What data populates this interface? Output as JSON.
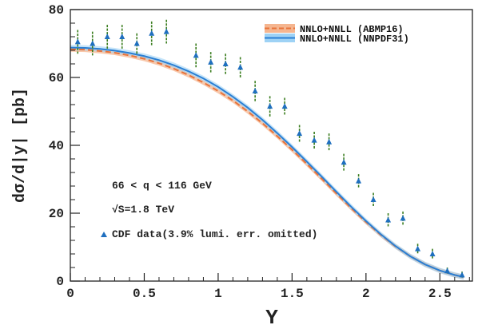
{
  "chart_data": {
    "type": "line",
    "xlabel": "Y",
    "ylabel": "dσ/d|y| [pb]",
    "xlim": [
      0,
      2.72
    ],
    "ylim": [
      0,
      80
    ],
    "xticks": [
      0,
      0.5,
      1,
      1.5,
      2,
      2.5
    ],
    "xtick_labels": [
      "0",
      "0.5",
      "1",
      "1.5",
      "2",
      "2.5"
    ],
    "yticks": [
      0,
      20,
      40,
      60,
      80
    ],
    "ytick_labels": [
      "0",
      "20",
      "40",
      "60",
      "80"
    ],
    "grid": false,
    "legend_position": "top-right",
    "series": [
      {
        "name": "NNLO+NNLL (ABMP16)",
        "kind": "band",
        "color": "#e8733a",
        "band_color": "#f5b58f",
        "style": "dashed",
        "x": [
          0,
          0.1,
          0.2,
          0.3,
          0.4,
          0.5,
          0.6,
          0.7,
          0.8,
          0.9,
          1.0,
          1.1,
          1.2,
          1.3,
          1.4,
          1.5,
          1.6,
          1.7,
          1.8,
          1.9,
          2.0,
          2.1,
          2.2,
          2.3,
          2.4,
          2.5,
          2.6,
          2.66
        ],
        "y": [
          68.3,
          68.2,
          67.8,
          67.3,
          66.5,
          65.5,
          64.2,
          62.6,
          60.7,
          58.5,
          56.0,
          53.2,
          50.0,
          46.5,
          42.7,
          38.7,
          34.5,
          30.2,
          25.8,
          21.5,
          17.4,
          13.6,
          10.2,
          7.3,
          4.9,
          3.1,
          1.8,
          1.2
        ],
        "band_halfwidth": 0.7
      },
      {
        "name": "NNLO+NNLL (NNPDF31)",
        "kind": "band",
        "color": "#2a7fd4",
        "band_color": "#9ed2f5",
        "style": "solid",
        "x": [
          0,
          0.1,
          0.2,
          0.3,
          0.4,
          0.5,
          0.6,
          0.7,
          0.8,
          0.9,
          1.0,
          1.1,
          1.2,
          1.3,
          1.4,
          1.5,
          1.6,
          1.7,
          1.8,
          1.9,
          2.0,
          2.1,
          2.2,
          2.3,
          2.4,
          2.5,
          2.6,
          2.66
        ],
        "y": [
          68.8,
          68.7,
          68.4,
          67.9,
          67.2,
          66.3,
          65.1,
          63.6,
          61.8,
          59.7,
          57.2,
          54.3,
          51.1,
          47.5,
          43.6,
          39.5,
          35.2,
          30.8,
          26.3,
          21.9,
          17.7,
          13.8,
          10.3,
          7.3,
          4.9,
          3.1,
          1.8,
          1.2
        ],
        "band_halfwidth": 0.8
      },
      {
        "name": "CDF data(3.9% lumi. err. omitted)",
        "kind": "points",
        "marker": "triangle",
        "color": "#1f6fbf",
        "errorbar_color": "#3a7d1e",
        "x": [
          0.05,
          0.15,
          0.25,
          0.35,
          0.45,
          0.55,
          0.65,
          0.85,
          0.95,
          1.05,
          1.15,
          1.25,
          1.35,
          1.45,
          1.55,
          1.65,
          1.75,
          1.85,
          1.95,
          2.05,
          2.15,
          2.25,
          2.35,
          2.45,
          2.55,
          2.65
        ],
        "y": [
          70.5,
          70.0,
          72.0,
          72.0,
          70.0,
          73.0,
          73.5,
          66.5,
          64.5,
          64.0,
          63.0,
          56.0,
          51.5,
          51.5,
          43.5,
          41.5,
          41.0,
          35.0,
          29.5,
          24.0,
          18.0,
          18.5,
          9.5,
          8.0,
          3.0,
          1.8
        ],
        "yerr": [
          3.5,
          3.5,
          3.5,
          3.5,
          3.0,
          3.5,
          3.5,
          3.5,
          3.0,
          3.0,
          3.0,
          3.0,
          3.0,
          2.5,
          2.5,
          2.5,
          2.5,
          2.5,
          2.0,
          2.0,
          2.0,
          2.0,
          1.5,
          1.5,
          1.0,
          1.0
        ]
      }
    ],
    "annotations": [
      "66 < q < 116 GeV",
      "√S=1.8 TeV"
    ]
  }
}
